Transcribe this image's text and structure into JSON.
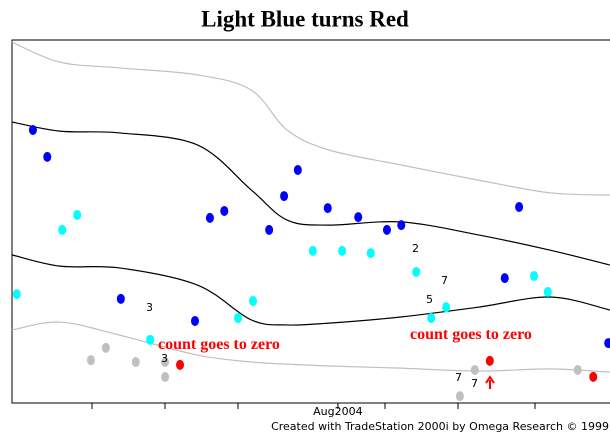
{
  "chart_data": {
    "type": "scatter",
    "title": "Light Blue turns Red",
    "footer": "Created with TradeStation 2000i by Omega Research © 1999",
    "xlim": [
      0,
      100
    ],
    "ylim": [
      0,
      100
    ],
    "xticks": [
      {
        "value": 54.5,
        "label": "Aug2004"
      }
    ],
    "lines": [
      {
        "color": "#c0c0c0",
        "x": [
          0,
          8,
          18,
          31,
          40,
          46,
          53,
          65,
          78,
          90,
          100
        ],
        "values": [
          99.4,
          93.9,
          92.3,
          90.4,
          86.2,
          75.2,
          69.7,
          65.6,
          61.4,
          57.9,
          57.3
        ]
      },
      {
        "color": "#000000",
        "x": [
          0,
          8,
          18,
          31,
          40,
          46,
          53,
          65,
          78,
          90,
          100
        ],
        "values": [
          77.4,
          74.9,
          74.4,
          71.1,
          58.7,
          50.4,
          49.0,
          49.9,
          46.3,
          42.1,
          38.0
        ]
      },
      {
        "color": "#000000",
        "x": [
          0,
          8,
          18,
          31,
          40,
          46,
          53,
          65,
          78,
          90,
          100
        ],
        "values": [
          40.8,
          37.7,
          37.2,
          32.5,
          22.9,
          21.5,
          22.0,
          23.7,
          26.4,
          29.2,
          25.6
        ]
      },
      {
        "color": "#c0c0c0",
        "x": [
          0,
          8,
          18,
          31,
          40,
          46,
          53,
          65,
          78,
          90,
          100
        ],
        "values": [
          20.1,
          22.3,
          18.7,
          13.2,
          11.3,
          10.7,
          10.2,
          9.6,
          8.8,
          9.4,
          8.5
        ]
      }
    ],
    "series": [
      {
        "color": "#0000ff",
        "x": [
          3.5,
          5.9,
          18.2,
          30.6,
          33.1,
          35.5,
          43.0,
          45.5,
          47.8,
          52.8,
          57.9,
          62.7,
          65.1,
          82.4,
          84.8,
          99.7
        ],
        "values": [
          75.2,
          67.8,
          28.7,
          22.6,
          51.0,
          52.9,
          47.7,
          57.0,
          64.2,
          53.7,
          51.2,
          47.7,
          49.0,
          34.4,
          54.0,
          16.5
        ]
      },
      {
        "color": "#00ffff",
        "x": [
          0.8,
          8.4,
          10.9,
          23.1,
          37.8,
          40.3,
          50.3,
          55.2,
          60.0,
          67.6,
          70.1,
          72.6,
          87.3,
          89.6
        ],
        "values": [
          30.0,
          47.7,
          51.8,
          17.4,
          23.4,
          28.1,
          41.9,
          41.9,
          41.3,
          36.1,
          23.4,
          26.4,
          35.0,
          30.6
        ]
      },
      {
        "color": "#c0c0c0",
        "x": [
          13.2,
          15.7,
          20.7,
          25.6,
          25.6,
          74.9,
          77.4,
          94.6
        ],
        "values": [
          11.8,
          15.2,
          11.3,
          11.3,
          7.2,
          1.9,
          9.1,
          9.1
        ]
      },
      {
        "color": "#ff0000",
        "x": [
          28.1,
          79.9,
          97.2
        ],
        "values": [
          10.5,
          11.6,
          7.2
        ]
      }
    ],
    "annotations": [
      "count goes to zero",
      "count goes to zero",
      "3",
      "2",
      "7",
      "5",
      "3",
      "7",
      "7"
    ]
  }
}
